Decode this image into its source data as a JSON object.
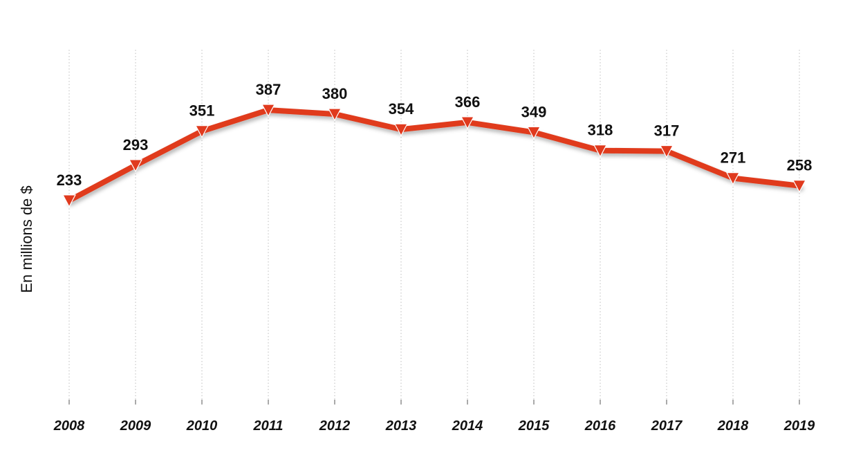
{
  "chart_data": {
    "type": "line",
    "title": "",
    "xlabel": "",
    "ylabel": "En millions de $",
    "categories": [
      "2008",
      "2009",
      "2010",
      "2011",
      "2012",
      "2013",
      "2014",
      "2015",
      "2016",
      "2017",
      "2018",
      "2019"
    ],
    "series": [
      {
        "values": [
          233,
          293,
          351,
          387,
          380,
          354,
          366,
          349,
          318,
          317,
          271,
          258
        ],
        "color": "#e03a1e",
        "marker": "triangle-down-icon"
      }
    ],
    "ylim": [
      0,
      400
    ],
    "grid": "vertical dotted",
    "legend": "none"
  }
}
